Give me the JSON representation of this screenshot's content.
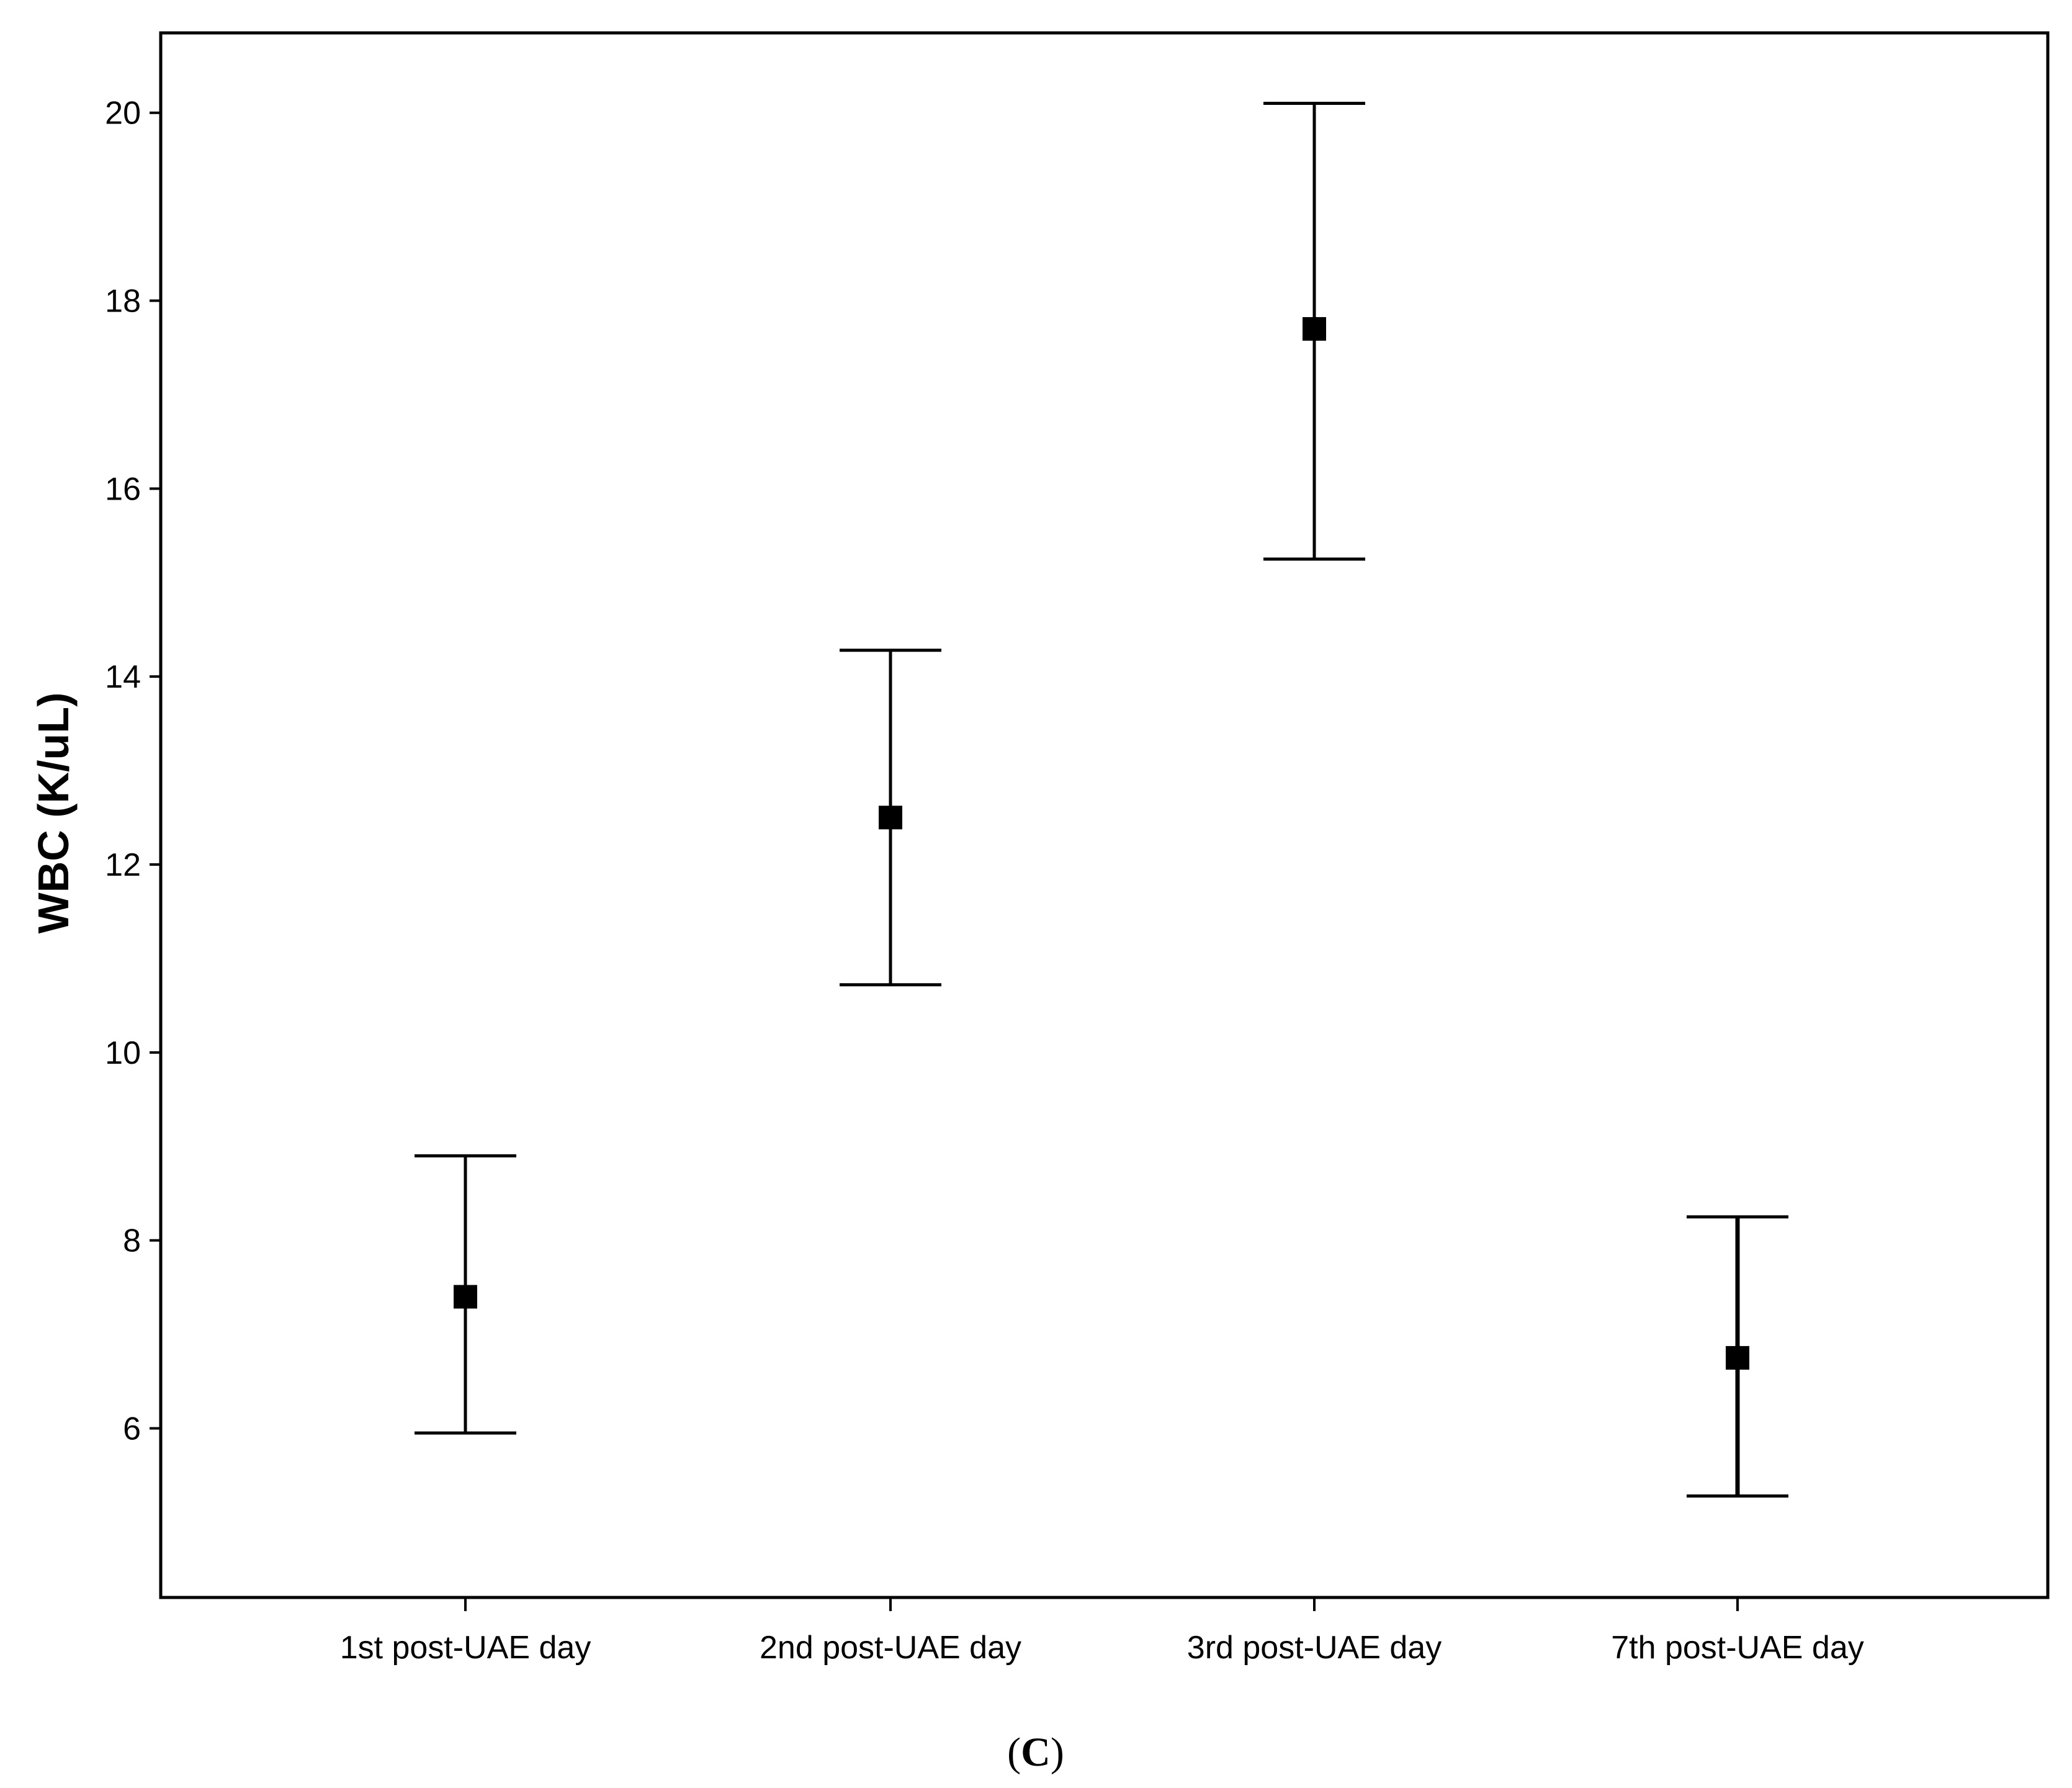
{
  "chart_data": {
    "type": "errorbar",
    "categories": [
      "1st post-UAE day",
      "2nd post-UAE day",
      "3rd post-UAE day",
      "7th post-UAE day"
    ],
    "series": [
      {
        "means": [
          7.4,
          12.5,
          17.7,
          6.75
        ],
        "lower": [
          5.95,
          10.72,
          15.25,
          5.28
        ],
        "upper": [
          8.9,
          14.28,
          20.1,
          8.25
        ]
      }
    ],
    "xlabel": "",
    "ylabel": "WBC (K/uL)",
    "ylim": [
      4.2,
      20.85
    ],
    "yticks": [
      6,
      8,
      10,
      12,
      14,
      16,
      18,
      20
    ],
    "grid": false,
    "legend": "none",
    "colors": {
      "marker": "#000000",
      "line": "#000000",
      "frame": "#000000",
      "background": "#ffffff"
    }
  },
  "panel": {
    "open": "(",
    "letter": "C",
    "close": ")"
  }
}
